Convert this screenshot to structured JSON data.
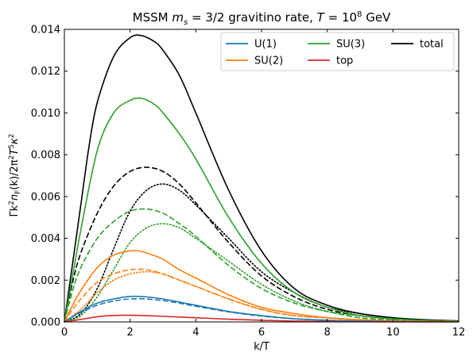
{
  "chart_data": {
    "type": "line",
    "title": {
      "prefix": "MSSM ",
      "m": "m",
      "m_sub": "s",
      "mid": " = 3/2 gravitino rate, ",
      "T": "T",
      "eq": " = 10",
      "exp": "8",
      "suffix": " GeV"
    },
    "xlabel": "k/T",
    "ylabel_parts": [
      "Γk",
      "2",
      "n",
      "F",
      "(k)/2π",
      "2",
      "T",
      "5",
      "κ",
      "2"
    ],
    "xlim": [
      0,
      12
    ],
    "ylim": [
      0,
      0.014
    ],
    "xticks": [
      "0",
      "2",
      "4",
      "6",
      "8",
      "10",
      "12"
    ],
    "yticks": [
      "0.000",
      "0.002",
      "0.004",
      "0.006",
      "0.008",
      "0.010",
      "0.012",
      "0.014"
    ],
    "legend": {
      "position": "top-right",
      "entries": [
        {
          "label": "U(1)",
          "color": "#1f77b4"
        },
        {
          "label": "SU(2)",
          "color": "#ff7f0e"
        },
        {
          "label": "SU(3)",
          "color": "#2ca02c"
        },
        {
          "label": "top",
          "color": "#d62728"
        },
        {
          "label": "total",
          "color": "#000000"
        }
      ]
    },
    "series": [
      {
        "name": "total",
        "style": "solid",
        "color": "#000000",
        "x": [
          0,
          0.25,
          0.5,
          0.75,
          1,
          1.5,
          2,
          2.35,
          2.75,
          3,
          3.5,
          4,
          5,
          6,
          7,
          8,
          9,
          10,
          11,
          12
        ],
        "y": [
          0,
          0.0028,
          0.0056,
          0.0084,
          0.0105,
          0.0127,
          0.0136,
          0.0137,
          0.0134,
          0.013,
          0.0118,
          0.01,
          0.0063,
          0.0034,
          0.0016,
          0.0008,
          0.0004,
          0.0002,
          0.0001,
          5e-05
        ]
      },
      {
        "name": "",
        "style": "dashed",
        "color": "#000000",
        "x": [
          0,
          0.25,
          0.5,
          1,
          1.5,
          2,
          2.5,
          3,
          3.5,
          4,
          5,
          6,
          7,
          8,
          9,
          10,
          11,
          12
        ],
        "y": [
          0,
          0.0019,
          0.0033,
          0.0052,
          0.0065,
          0.0072,
          0.0074,
          0.0072,
          0.0066,
          0.0057,
          0.0038,
          0.0022,
          0.0012,
          0.0006,
          0.0003,
          0.00015,
          8e-05,
          4e-05
        ]
      },
      {
        "name": "",
        "style": "dotted",
        "color": "#000000",
        "x": [
          0,
          0.5,
          1,
          1.5,
          2,
          2.5,
          3,
          3.5,
          4,
          5,
          6,
          7,
          8,
          9,
          10,
          11,
          12
        ],
        "y": [
          0,
          0.0004,
          0.0016,
          0.0035,
          0.0053,
          0.0063,
          0.0066,
          0.0063,
          0.0056,
          0.004,
          0.0024,
          0.0014,
          0.0007,
          0.0004,
          0.0002,
          0.0001,
          5e-05
        ]
      },
      {
        "name": "SU(3)",
        "style": "solid",
        "color": "#2ca02c",
        "x": [
          0,
          0.25,
          0.5,
          1,
          1.5,
          2,
          2.35,
          2.75,
          3,
          3.5,
          4,
          5,
          6,
          7,
          8,
          9,
          10,
          11,
          12
        ],
        "y": [
          0,
          0.0022,
          0.0044,
          0.0082,
          0.01,
          0.0106,
          0.0107,
          0.0104,
          0.01,
          0.009,
          0.0078,
          0.005,
          0.0028,
          0.0014,
          0.0007,
          0.0003,
          0.00015,
          7e-05,
          3e-05
        ]
      },
      {
        "name": "",
        "style": "dashed",
        "color": "#2ca02c",
        "x": [
          0,
          0.25,
          0.5,
          1,
          1.5,
          2,
          2.5,
          3,
          3.5,
          4,
          5,
          6,
          7,
          8,
          9,
          10,
          11,
          12
        ],
        "y": [
          0,
          0.0015,
          0.0026,
          0.004,
          0.0048,
          0.0053,
          0.0054,
          0.0052,
          0.0047,
          0.0041,
          0.0027,
          0.0016,
          0.0009,
          0.0005,
          0.0002,
          0.0001,
          5e-05,
          3e-05
        ]
      },
      {
        "name": "",
        "style": "dotted",
        "color": "#2ca02c",
        "x": [
          0,
          0.5,
          1,
          1.5,
          2,
          2.5,
          3,
          3.5,
          4,
          5,
          6,
          7,
          8,
          9,
          10,
          11,
          12
        ],
        "y": [
          0,
          0.0003,
          0.0012,
          0.0025,
          0.0038,
          0.0045,
          0.0047,
          0.0045,
          0.004,
          0.0029,
          0.0018,
          0.001,
          0.0005,
          0.0003,
          0.00015,
          7e-05,
          3e-05
        ]
      },
      {
        "name": "SU(2)",
        "style": "solid",
        "color": "#ff7f0e",
        "x": [
          0,
          0.25,
          0.5,
          1,
          1.5,
          2,
          2.25,
          2.5,
          3,
          3.5,
          4,
          5,
          6,
          7,
          8,
          9,
          10,
          11,
          12
        ],
        "y": [
          0,
          0.0008,
          0.0015,
          0.0026,
          0.0032,
          0.0034,
          0.0034,
          0.0033,
          0.003,
          0.0025,
          0.0021,
          0.0013,
          0.0007,
          0.0004,
          0.0002,
          0.0001,
          5e-05,
          2e-05,
          1e-05
        ]
      },
      {
        "name": "",
        "style": "dashed",
        "color": "#ff7f0e",
        "x": [
          0,
          0.25,
          0.5,
          1,
          1.5,
          2,
          2.5,
          3,
          3.5,
          4,
          5,
          6,
          7,
          8,
          9,
          10,
          11,
          12
        ],
        "y": [
          0,
          0.0006,
          0.0011,
          0.0019,
          0.0023,
          0.0025,
          0.0025,
          0.0023,
          0.002,
          0.0017,
          0.0011,
          0.0006,
          0.0003,
          0.0002,
          0.0001,
          5e-05,
          2e-05,
          1e-05
        ]
      },
      {
        "name": "",
        "style": "dotted",
        "color": "#ff7f0e",
        "x": [
          0,
          0.5,
          1,
          1.5,
          2,
          2.5,
          3,
          3.5,
          4,
          5,
          6,
          7,
          8,
          9,
          10,
          11,
          12
        ],
        "y": [
          0,
          0.0006,
          0.0014,
          0.002,
          0.0023,
          0.0024,
          0.0023,
          0.002,
          0.0017,
          0.0011,
          0.0006,
          0.0003,
          0.0002,
          0.0001,
          5e-05,
          2e-05,
          1e-05
        ]
      },
      {
        "name": "U(1)",
        "style": "solid",
        "color": "#1f77b4",
        "x": [
          0,
          0.25,
          0.5,
          1,
          1.5,
          2,
          2.5,
          3,
          3.5,
          4,
          5,
          6,
          7,
          8,
          9,
          10,
          11,
          12
        ],
        "y": [
          0,
          0.00025,
          0.0005,
          0.0009,
          0.0011,
          0.00122,
          0.0012,
          0.0011,
          0.00095,
          0.0008,
          0.0005,
          0.0003,
          0.00015,
          8e-05,
          4e-05,
          2e-05,
          1e-05,
          1e-05
        ]
      },
      {
        "name": "",
        "style": "dashed",
        "color": "#1f77b4",
        "x": [
          0,
          0.25,
          0.5,
          1,
          1.5,
          2,
          2.5,
          3,
          3.5,
          4,
          5,
          6,
          7,
          8,
          9,
          10,
          11,
          12
        ],
        "y": [
          0,
          0.00025,
          0.00045,
          0.0008,
          0.001,
          0.0011,
          0.0011,
          0.00102,
          0.0009,
          0.00075,
          0.00048,
          0.00028,
          0.00015,
          8e-05,
          4e-05,
          2e-05,
          1e-05,
          1e-05
        ]
      },
      {
        "name": "top",
        "style": "solid",
        "color": "#d62728",
        "x": [
          0,
          0.5,
          1,
          1.5,
          2,
          2.5,
          3,
          4,
          5,
          6,
          7,
          8,
          9,
          10,
          11,
          12
        ],
        "y": [
          0,
          0.00012,
          0.00025,
          0.00031,
          0.00032,
          0.0003,
          0.00027,
          0.0002,
          0.00013,
          8e-05,
          4e-05,
          2e-05,
          1e-05,
          5e-06,
          3e-06,
          1e-06
        ]
      }
    ]
  }
}
